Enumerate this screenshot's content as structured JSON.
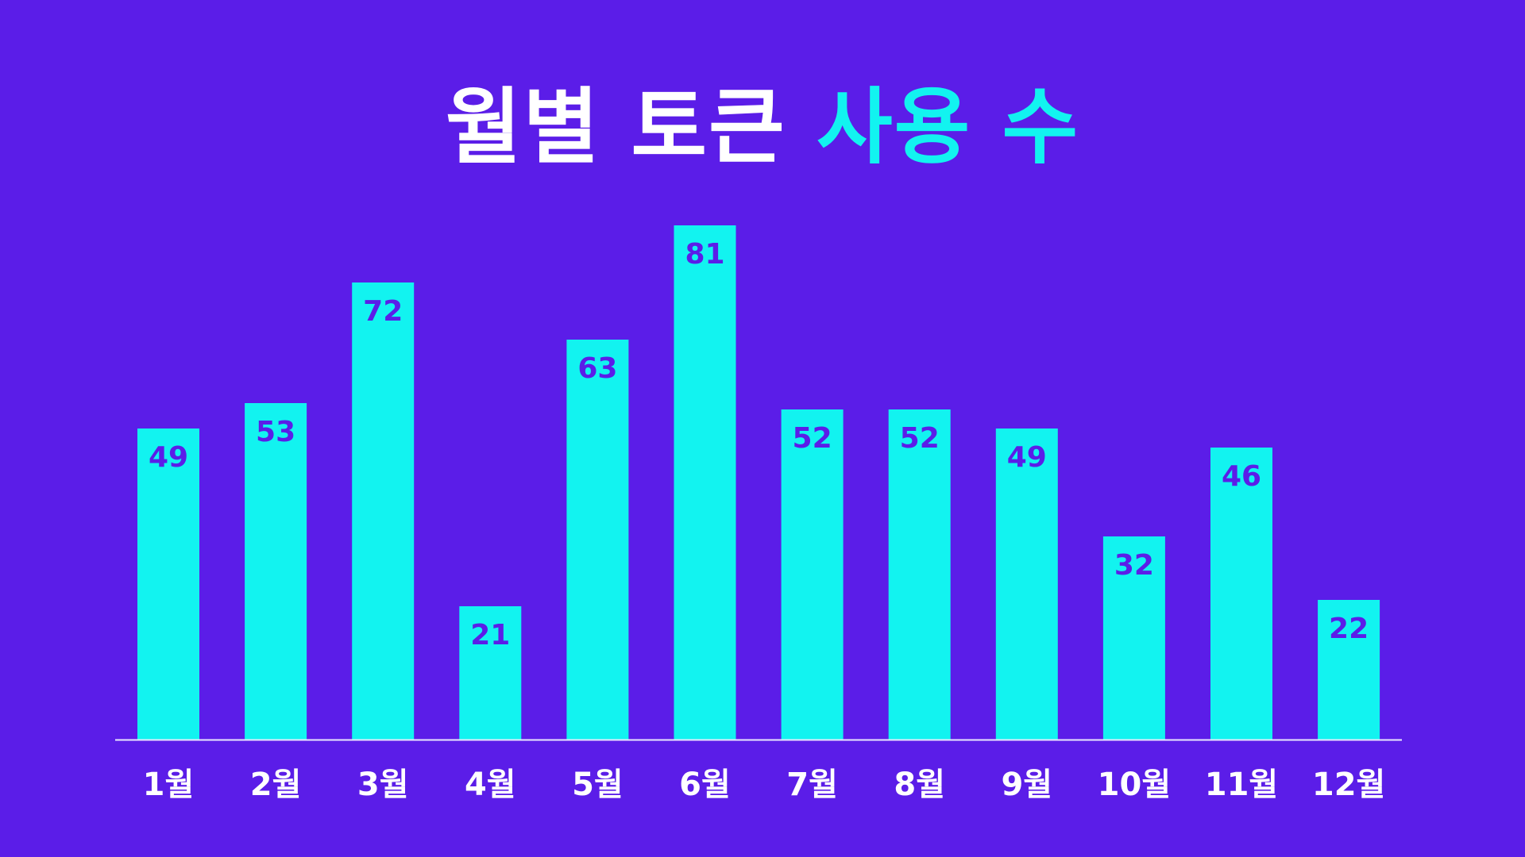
{
  "title": {
    "part1": "월별 토큰",
    "part2": "사용 수"
  },
  "colors": {
    "background": "#5b1de8",
    "bar": "#12f3f0",
    "title_primary": "#ffffff",
    "title_accent": "#12f3f0",
    "value_label": "#5b1de8",
    "axis_line": "#e9e6ff",
    "tick_label": "#ffffff"
  },
  "chart_data": {
    "type": "bar",
    "categories": [
      "1월",
      "2월",
      "3월",
      "4월",
      "5월",
      "6월",
      "7월",
      "8월",
      "9월",
      "10월",
      "11월",
      "12월"
    ],
    "values": [
      49,
      53,
      72,
      21,
      63,
      81,
      52,
      52,
      49,
      32,
      46,
      22
    ],
    "title": "월별 토큰 사용 수",
    "xlabel": "",
    "ylabel": "",
    "ylim": [
      0,
      81
    ],
    "grid": false,
    "legend": "none"
  }
}
